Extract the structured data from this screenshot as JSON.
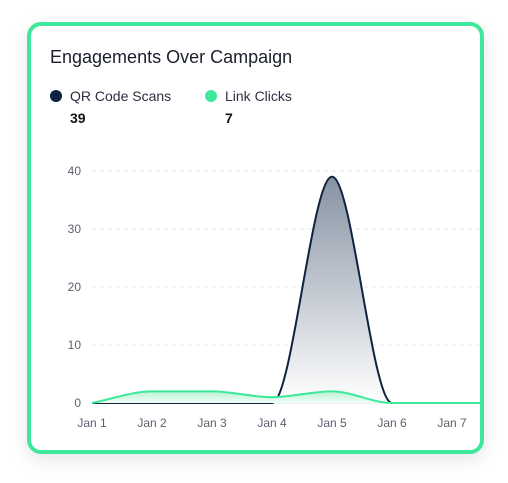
{
  "title": "Engagements Over Campaign",
  "legend": [
    {
      "label": "QR Code Scans",
      "value": "39",
      "color": "#0f2340"
    },
    {
      "label": "Link Clicks",
      "value": "7",
      "color": "#3ee89a"
    }
  ],
  "chart_data": {
    "type": "area",
    "categories": [
      "Jan 1",
      "Jan 2",
      "Jan 3",
      "Jan 4",
      "Jan 5",
      "Jan 6",
      "Jan 7"
    ],
    "series": [
      {
        "name": "QR Code Scans",
        "values": [
          0,
          0,
          0,
          0,
          39,
          0,
          0
        ],
        "color": "#0f2340"
      },
      {
        "name": "Link Clicks",
        "values": [
          0,
          2,
          2,
          1,
          2,
          0,
          0
        ],
        "color": "#3ee89a"
      }
    ],
    "yticks": [
      0,
      10,
      20,
      30,
      40
    ],
    "ylim": [
      0,
      40
    ],
    "grid": true
  }
}
